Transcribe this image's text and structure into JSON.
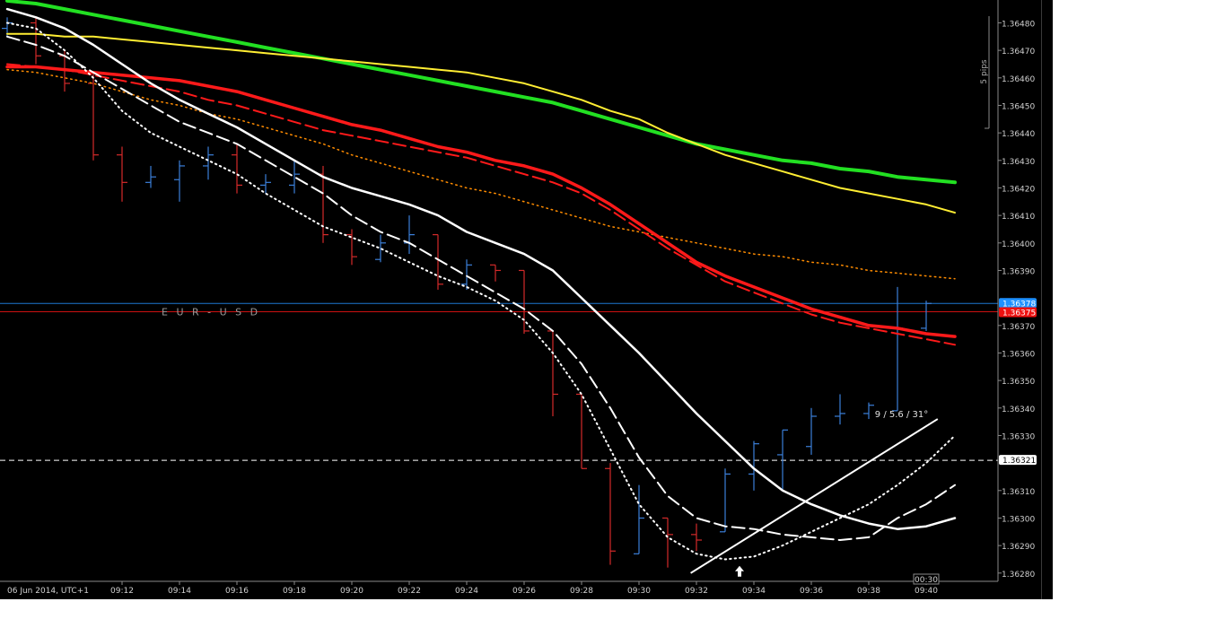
{
  "chart_data": {
    "type": "ohlc",
    "symbol_watermark": "E  U  R  -  U  S  D",
    "time_label": "06 Jun 2014, UTC+1",
    "x_ticks": [
      "09:12",
      "09:14",
      "09:16",
      "09:18",
      "09:20",
      "09:22",
      "09:24",
      "09:26",
      "09:28",
      "09:30",
      "09:32",
      "09:34",
      "09:36",
      "09:38",
      "09:40"
    ],
    "y_ticks": [
      1.3648,
      1.3647,
      1.3646,
      1.3645,
      1.3644,
      1.3643,
      1.3642,
      1.3641,
      1.364,
      1.3639,
      1.3637,
      1.3636,
      1.3635,
      1.3634,
      1.3633,
      1.3631,
      1.363,
      1.3629,
      1.3628
    ],
    "ylim": [
      1.36277,
      1.36487
    ],
    "bars": [
      {
        "o": 1.36478,
        "h": 1.36482,
        "l": 1.36475,
        "c": 1.3648
      },
      {
        "o": 1.3648,
        "h": 1.36482,
        "l": 1.36465,
        "c": 1.36468
      },
      {
        "o": 1.36468,
        "h": 1.3647,
        "l": 1.36455,
        "c": 1.36458
      },
      {
        "o": 1.36458,
        "h": 1.36462,
        "l": 1.3643,
        "c": 1.36432
      },
      {
        "o": 1.36432,
        "h": 1.36435,
        "l": 1.36415,
        "c": 1.36422
      },
      {
        "o": 1.36422,
        "h": 1.36428,
        "l": 1.3642,
        "c": 1.36424
      },
      {
        "o": 1.36423,
        "h": 1.3643,
        "l": 1.36415,
        "c": 1.36428
      },
      {
        "o": 1.36428,
        "h": 1.36435,
        "l": 1.36423,
        "c": 1.36432
      },
      {
        "o": 1.36432,
        "h": 1.36436,
        "l": 1.36418,
        "c": 1.36421
      },
      {
        "o": 1.36421,
        "h": 1.36425,
        "l": 1.36418,
        "c": 1.36422
      },
      {
        "o": 1.36421,
        "h": 1.3643,
        "l": 1.36418,
        "c": 1.36425
      },
      {
        "o": 1.36425,
        "h": 1.36428,
        "l": 1.364,
        "c": 1.36403
      },
      {
        "o": 1.36403,
        "h": 1.36405,
        "l": 1.36392,
        "c": 1.36395
      },
      {
        "o": 1.36394,
        "h": 1.36403,
        "l": 1.36393,
        "c": 1.364
      },
      {
        "o": 1.364,
        "h": 1.3641,
        "l": 1.36396,
        "c": 1.36403
      },
      {
        "o": 1.36403,
        "h": 1.36403,
        "l": 1.36383,
        "c": 1.36385
      },
      {
        "o": 1.36385,
        "h": 1.36394,
        "l": 1.36383,
        "c": 1.36392
      },
      {
        "o": 1.36392,
        "h": 1.36392,
        "l": 1.36386,
        "c": 1.3639
      },
      {
        "o": 1.3639,
        "h": 1.3639,
        "l": 1.36367,
        "c": 1.36368
      },
      {
        "o": 1.36368,
        "h": 1.36368,
        "l": 1.36337,
        "c": 1.36345
      },
      {
        "o": 1.36345,
        "h": 1.36345,
        "l": 1.36318,
        "c": 1.36318
      },
      {
        "o": 1.36318,
        "h": 1.3632,
        "l": 1.36283,
        "c": 1.36288
      },
      {
        "o": 1.36287,
        "h": 1.36312,
        "l": 1.36287,
        "c": 1.363
      },
      {
        "o": 1.363,
        "h": 1.363,
        "l": 1.36282,
        "c": 1.36294
      },
      {
        "o": 1.36294,
        "h": 1.36298,
        "l": 1.36288,
        "c": 1.36292
      },
      {
        "o": 1.36295,
        "h": 1.36318,
        "l": 1.36295,
        "c": 1.36316
      },
      {
        "o": 1.36316,
        "h": 1.36328,
        "l": 1.3631,
        "c": 1.36327
      },
      {
        "o": 1.36323,
        "h": 1.36332,
        "l": 1.3631,
        "c": 1.36332
      },
      {
        "o": 1.36326,
        "h": 1.3634,
        "l": 1.36323,
        "c": 1.36337
      },
      {
        "o": 1.36337,
        "h": 1.36345,
        "l": 1.36334,
        "c": 1.36338
      },
      {
        "o": 1.36338,
        "h": 1.36342,
        "l": 1.36336,
        "c": 1.36341
      },
      {
        "o": 1.36339,
        "h": 1.36384,
        "l": 1.36339,
        "c": 1.36369
      },
      {
        "o": 1.36369,
        "h": 1.36379,
        "l": 1.36368,
        "c": 1.36378
      }
    ],
    "series": [
      {
        "color": "#ff8c00",
        "style": "dotted",
        "width": 1.5,
        "values": [
          1.36463,
          1.36462,
          1.3646,
          1.36458,
          1.36455,
          1.36452,
          1.3645,
          1.36447,
          1.36445,
          1.36442,
          1.36439,
          1.36436,
          1.36432,
          1.36429,
          1.36426,
          1.36423,
          1.3642,
          1.36418,
          1.36415,
          1.36412,
          1.36409,
          1.36406,
          1.36404,
          1.36402,
          1.364,
          1.36398,
          1.36396,
          1.36395,
          1.36393,
          1.36392,
          1.3639,
          1.36389,
          1.36388,
          1.36387
        ]
      },
      {
        "color": "#22e022",
        "style": "solid",
        "width": 4,
        "values": [
          1.36488,
          1.36487,
          1.36485,
          1.36483,
          1.36481,
          1.36479,
          1.36477,
          1.36475,
          1.36473,
          1.36471,
          1.36469,
          1.36467,
          1.36465,
          1.36463,
          1.36461,
          1.36459,
          1.36457,
          1.36455,
          1.36453,
          1.36451,
          1.36448,
          1.36445,
          1.36442,
          1.36439,
          1.36436,
          1.36434,
          1.36432,
          1.3643,
          1.36429,
          1.36427,
          1.36426,
          1.36424,
          1.36423,
          1.36422
        ]
      },
      {
        "color": "#ffee33",
        "style": "solid",
        "width": 2,
        "values": [
          1.36476,
          1.36476,
          1.36475,
          1.36475,
          1.36474,
          1.36473,
          1.36472,
          1.36471,
          1.3647,
          1.36469,
          1.36468,
          1.36467,
          1.36466,
          1.36465,
          1.36464,
          1.36463,
          1.36462,
          1.3646,
          1.36458,
          1.36455,
          1.36452,
          1.36448,
          1.36445,
          1.3644,
          1.36436,
          1.36432,
          1.36429,
          1.36426,
          1.36423,
          1.3642,
          1.36418,
          1.36416,
          1.36414,
          1.36411
        ]
      },
      {
        "color": "#ff1a1a",
        "style": "solid",
        "width": 3.5,
        "values": [
          1.36464,
          1.36464,
          1.36463,
          1.36462,
          1.36461,
          1.3646,
          1.36459,
          1.36457,
          1.36455,
          1.36452,
          1.36449,
          1.36446,
          1.36443,
          1.36441,
          1.36438,
          1.36435,
          1.36433,
          1.3643,
          1.36428,
          1.36425,
          1.3642,
          1.36414,
          1.36407,
          1.364,
          1.36393,
          1.36388,
          1.36384,
          1.3638,
          1.36376,
          1.36373,
          1.3637,
          1.36369,
          1.36367,
          1.36366
        ]
      },
      {
        "color": "#ff1a1a",
        "style": "dashed",
        "width": 2,
        "values": [
          1.36465,
          1.36464,
          1.36463,
          1.36461,
          1.36459,
          1.36457,
          1.36455,
          1.36452,
          1.3645,
          1.36447,
          1.36444,
          1.36441,
          1.36439,
          1.36437,
          1.36435,
          1.36433,
          1.36431,
          1.36428,
          1.36425,
          1.36422,
          1.36418,
          1.36412,
          1.36405,
          1.36398,
          1.36392,
          1.36386,
          1.36382,
          1.36378,
          1.36374,
          1.36371,
          1.36369,
          1.36367,
          1.36365,
          1.36363
        ]
      },
      {
        "color": "#ffffff",
        "style": "solid",
        "width": 2.5,
        "values": [
          1.36485,
          1.36482,
          1.36478,
          1.36472,
          1.36465,
          1.36458,
          1.36452,
          1.36447,
          1.36442,
          1.36436,
          1.3643,
          1.36424,
          1.3642,
          1.36417,
          1.36414,
          1.3641,
          1.36404,
          1.364,
          1.36396,
          1.3639,
          1.3638,
          1.3637,
          1.3636,
          1.36349,
          1.36338,
          1.36328,
          1.36318,
          1.3631,
          1.36305,
          1.36301,
          1.36298,
          1.36296,
          1.36297,
          1.363
        ]
      },
      {
        "color": "#ffffff",
        "style": "dashed",
        "width": 2,
        "values": [
          1.36475,
          1.36472,
          1.36468,
          1.36462,
          1.36456,
          1.3645,
          1.36444,
          1.3644,
          1.36436,
          1.3643,
          1.36424,
          1.36418,
          1.3641,
          1.36404,
          1.364,
          1.36394,
          1.36388,
          1.36382,
          1.36376,
          1.36368,
          1.36356,
          1.3634,
          1.36322,
          1.36308,
          1.363,
          1.36297,
          1.36296,
          1.36294,
          1.36293,
          1.36292,
          1.36293,
          1.363,
          1.36305,
          1.36312
        ]
      },
      {
        "color": "#ffffff",
        "style": "dotted",
        "width": 2,
        "values": [
          1.3648,
          1.36478,
          1.3647,
          1.3646,
          1.36448,
          1.3644,
          1.36435,
          1.3643,
          1.36425,
          1.36418,
          1.36412,
          1.36406,
          1.36402,
          1.36398,
          1.36393,
          1.36388,
          1.36384,
          1.36379,
          1.36372,
          1.3636,
          1.36345,
          1.36325,
          1.36305,
          1.36293,
          1.36287,
          1.36285,
          1.36286,
          1.3629,
          1.36295,
          1.363,
          1.36305,
          1.36312,
          1.3632,
          1.3633
        ]
      }
    ],
    "markers": [
      {
        "label": "1.36378",
        "value": 1.36378,
        "color": "#1e90ff",
        "line_color": "#1e78d2"
      },
      {
        "label": "1.36375",
        "value": 1.36375,
        "color": "#ee1111",
        "line_color": "#cc1111"
      },
      {
        "label": "1.36321",
        "value": 1.36321,
        "color": "#ffffff",
        "line_color": "#ffffff"
      }
    ],
    "trendline": {
      "start": {
        "bar": 23.8,
        "value": 1.3628
      },
      "end": {
        "bar": 32.4,
        "value": 1.36336
      },
      "label": "9 / 5.6 / 31°"
    },
    "arrow_bar_index": 25.5,
    "ruler_label": "5 pips",
    "countdown": "00:30",
    "colors": {
      "up_bar": "#3b7fd9",
      "down_bar": "#d42a2a",
      "grid": "#303030"
    }
  }
}
